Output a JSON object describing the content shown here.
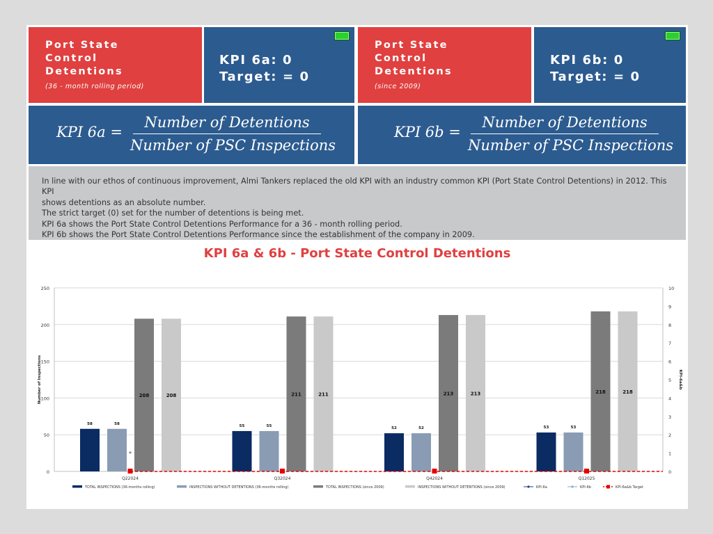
{
  "tiles": {
    "t6a_title": "Port State\nControl\nDetentions",
    "t6a_sub": "(36 - month rolling period)",
    "t6a_kpi": "KPI 6a: 0",
    "t6a_target": "Target: = 0",
    "t6b_title": "Port State\nControl\nDetentions",
    "t6b_sub": "(since 2009)",
    "t6b_kpi": "KPI 6b: 0",
    "t6b_target": "Target: = 0",
    "status_color": "#2ad12a"
  },
  "formulas": {
    "a": {
      "lhs": "KPI  6a  =",
      "num": "Number of Detentions",
      "den": "Number of PSC Inspections"
    },
    "b": {
      "lhs": "KPI  6b  =",
      "num": "Number of Detentions",
      "den": "Number of PSC Inspections"
    }
  },
  "info": {
    "lines": [
      "In line with our ethos of continuous improvement, Almi Tankers replaced the old KPI with an industry common KPI (Port State Control Detentions) in 2012. This KPI",
      "shows detentions as an absolute number.",
      "The strict target (0) set for the number of detentions is being met.",
      "KPI 6a shows the Port State Control Detentions Performance for a 36 - month rolling period.",
      "KPI 6b shows the Port State Control Detentions Performance since the establishment of the company in 2009."
    ]
  },
  "colors": {
    "red": "#e04040",
    "blue": "#2c5b8f",
    "info_bg": "#c8c9cb"
  },
  "chart_data": {
    "type": "bar",
    "title": "KPI 6a & 6b - Port State Control Detentions",
    "categories": [
      "Q22024",
      "Q32024",
      "Q42024",
      "Q12025"
    ],
    "ylabel": "Number of Inspections",
    "ylabel_right": "KPI-6a&b",
    "ylim": [
      0,
      250
    ],
    "yticks": [
      0,
      50,
      100,
      150,
      200,
      250
    ],
    "ylim_right": [
      0,
      10
    ],
    "yticks_right": [
      0,
      1,
      2,
      3,
      4,
      5,
      6,
      7,
      8,
      9,
      10
    ],
    "grid": true,
    "legend_position": "bottom",
    "asterisk_note": "*",
    "series": [
      {
        "name": "TOTAL INSPECTIONS (36-months rolling)",
        "values": [
          58,
          55,
          52,
          53
        ],
        "color": "#0b2b63",
        "axis": "left",
        "kind": "bar"
      },
      {
        "name": "INSPECTIONS WITHOUT DETENTIONS (36-months rolling)",
        "values": [
          58,
          55,
          52,
          53
        ],
        "color": "#8a9cb3",
        "axis": "left",
        "kind": "bar"
      },
      {
        "name": "TOTAL  INSPECTIONS (since 2009)",
        "values": [
          208,
          211,
          213,
          218
        ],
        "color": "#7b7b7b",
        "axis": "left",
        "kind": "bar"
      },
      {
        "name": "INSPECTIONS WITHOUT DETENTIONS  (since 2009)",
        "values": [
          208,
          211,
          213,
          218
        ],
        "color": "#c9c9c9",
        "axis": "left",
        "kind": "bar"
      },
      {
        "name": "KPI-6a",
        "values": [
          0,
          0,
          0,
          0
        ],
        "color": "#1f3f8f",
        "axis": "right",
        "kind": "line"
      },
      {
        "name": "KPI-6b",
        "values": [
          0,
          0,
          0,
          0
        ],
        "color": "#8fa7d8",
        "axis": "right",
        "kind": "line"
      },
      {
        "name": "KPI-6a&b Target",
        "values": [
          0,
          0,
          0,
          0
        ],
        "color": "#e60000",
        "axis": "right",
        "kind": "target"
      }
    ]
  }
}
